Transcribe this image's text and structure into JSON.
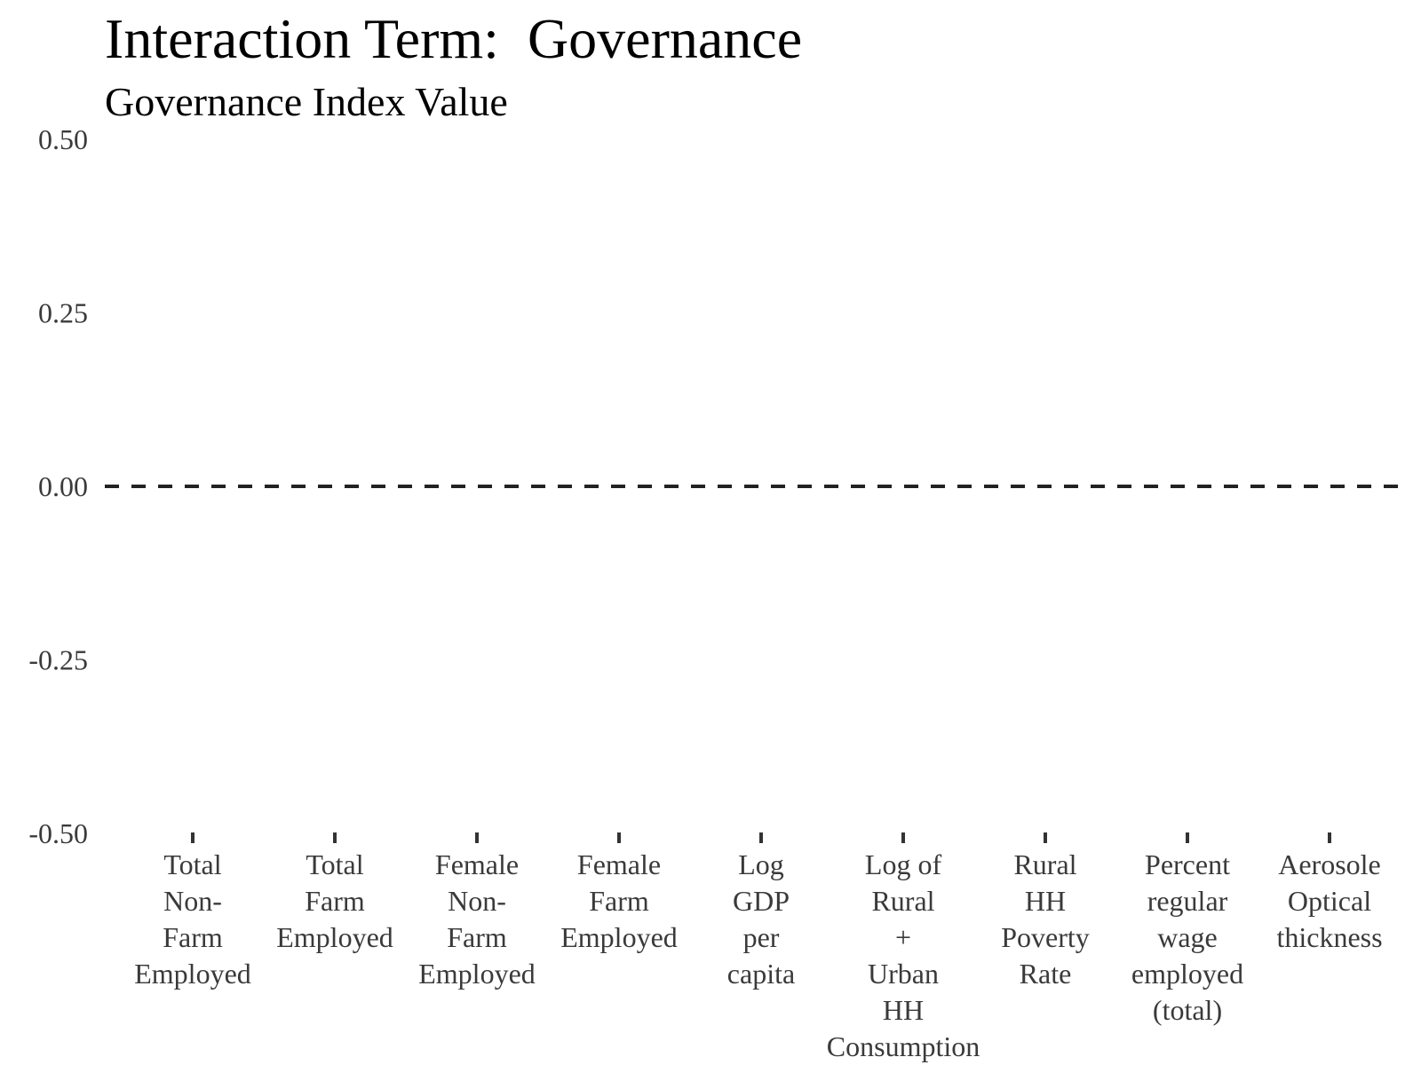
{
  "chart_data": {
    "type": "scatter",
    "title": "Interaction Term:  Governance",
    "subtitle": "Governance Index Value",
    "xlabel": "",
    "ylabel": "",
    "categories": [
      [
        "Total",
        "Non-",
        "Farm",
        "Employed"
      ],
      [
        "Total",
        "Farm",
        "Employed"
      ],
      [
        "Female",
        "Non-",
        "Farm",
        "Employed"
      ],
      [
        "Female",
        "Farm",
        "Employed"
      ],
      [
        "Log",
        "GDP",
        "per",
        "capita"
      ],
      [
        "Log of",
        "Rural",
        "+",
        "Urban",
        "HH",
        "Consumption"
      ],
      [
        "Rural",
        "HH",
        "Poverty",
        "Rate"
      ],
      [
        "Percent",
        "regular",
        "wage",
        "employed",
        "(total)"
      ],
      [
        "Aerosole",
        "Optical",
        "thickness"
      ]
    ],
    "series": [],
    "ylim": [
      -0.5,
      0.5
    ],
    "yticks": [
      "0.50",
      "0.25",
      "0.00",
      "-0.25",
      "-0.50"
    ],
    "ytick_values": [
      0.5,
      0.25,
      0.0,
      -0.25,
      -0.5
    ],
    "reference_line": {
      "y": 0,
      "style": "dashed",
      "color": "#222222"
    },
    "grid": false,
    "legend": "none"
  }
}
